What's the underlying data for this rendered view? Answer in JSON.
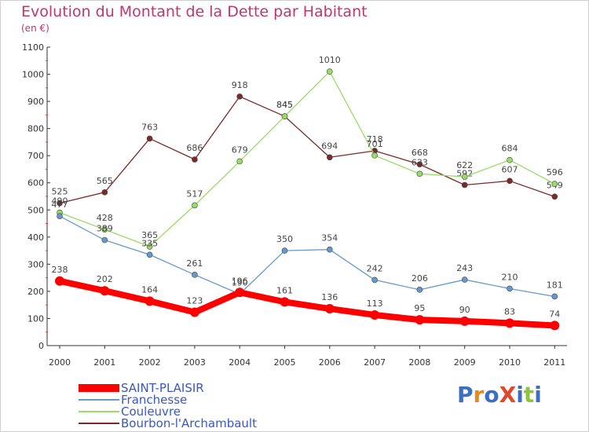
{
  "header": {
    "title": "Evolution du Montant de la Dette par Habitant",
    "unit": "(en €)"
  },
  "logo": {
    "text": "ProXiti"
  },
  "chart_data": {
    "type": "line",
    "categories": [
      "2000",
      "2001",
      "2002",
      "2003",
      "2004",
      "2005",
      "2006",
      "2007",
      "2008",
      "2009",
      "2010",
      "2011"
    ],
    "ylim": [
      0,
      1100
    ],
    "yticks": [
      0,
      100,
      200,
      300,
      400,
      500,
      600,
      700,
      800,
      900,
      1000,
      1100
    ],
    "grid": false,
    "legend_position": "bottom-left",
    "series": [
      {
        "name": "SAINT-PLAISIR",
        "color": "#ff0000",
        "values": [
          238,
          202,
          164,
          123,
          196,
          161,
          136,
          113,
          95,
          90,
          83,
          74
        ]
      },
      {
        "name": "Franchesse",
        "color": "#6699cc",
        "values": [
          477,
          389,
          335,
          261,
          190,
          350,
          354,
          242,
          206,
          243,
          210,
          181
        ]
      },
      {
        "name": "Couleuvre",
        "color": "#99dd66",
        "values": [
          490,
          428,
          365,
          517,
          679,
          845,
          1010,
          701,
          633,
          622,
          684,
          596
        ]
      },
      {
        "name": "Bourbon-l'Archambault",
        "color": "#7a2a2a",
        "values": [
          525,
          565,
          763,
          686,
          918,
          845,
          694,
          718,
          668,
          592,
          607,
          549
        ]
      }
    ]
  }
}
